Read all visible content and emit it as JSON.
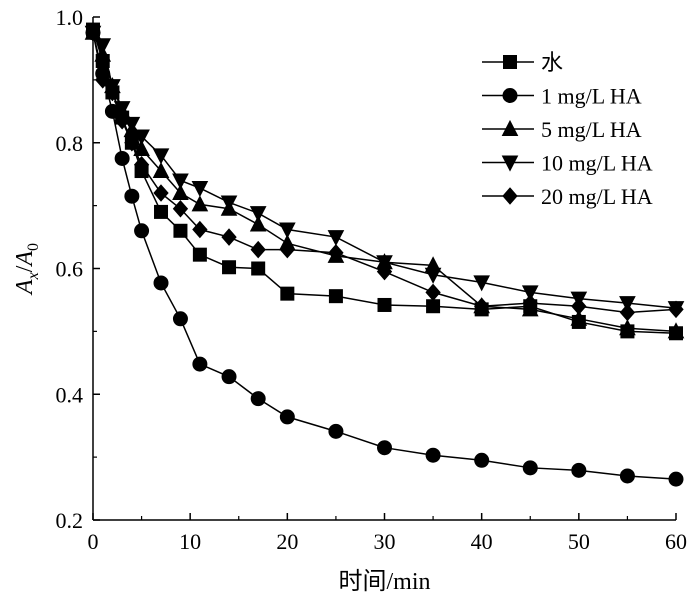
{
  "chart_data": {
    "type": "line",
    "xlabel": "时间/min",
    "ylabel": {
      "base": "A",
      "sub1": "x",
      "slash": "/",
      "base2": "A",
      "sub2": "0"
    },
    "xlim": [
      0,
      60
    ],
    "ylim": [
      0.2,
      1.0
    ],
    "x_ticks": [
      0,
      10,
      20,
      30,
      40,
      50,
      60
    ],
    "y_ticks": [
      0.2,
      0.4,
      0.6,
      0.8,
      1.0
    ],
    "x_tick_labels": [
      "0",
      "10",
      "20",
      "30",
      "40",
      "50",
      "60"
    ],
    "y_tick_labels": [
      "0.2",
      "0.4",
      "0.6",
      "0.8",
      "1.0"
    ],
    "grid": false,
    "legend_position": "top-right",
    "color": "#000000",
    "series": [
      {
        "name": "水",
        "marker": "square",
        "x": [
          0,
          1,
          2,
          3,
          4,
          5,
          7,
          9,
          11,
          14,
          17,
          20,
          25,
          30,
          35,
          40,
          45,
          50,
          55,
          60
        ],
        "y": [
          0.98,
          0.93,
          0.88,
          0.84,
          0.8,
          0.755,
          0.69,
          0.66,
          0.622,
          0.602,
          0.6,
          0.56,
          0.556,
          0.542,
          0.54,
          0.535,
          0.54,
          0.515,
          0.5,
          0.497
        ]
      },
      {
        "name": "1 mg/L HA",
        "marker": "circle",
        "x": [
          0,
          1,
          2,
          3,
          4,
          5,
          7,
          9,
          11,
          14,
          17,
          20,
          25,
          30,
          35,
          40,
          45,
          50,
          55,
          60
        ],
        "y": [
          0.975,
          0.91,
          0.85,
          0.775,
          0.715,
          0.66,
          0.577,
          0.52,
          0.448,
          0.428,
          0.393,
          0.364,
          0.341,
          0.315,
          0.303,
          0.295,
          0.283,
          0.279,
          0.27,
          0.265
        ]
      },
      {
        "name": "5 mg/L HA",
        "marker": "triangle-up",
        "x": [
          0,
          1,
          2,
          3,
          4,
          5,
          7,
          9,
          11,
          14,
          17,
          20,
          25,
          30,
          35,
          40,
          45,
          50,
          55,
          60
        ],
        "y": [
          0.975,
          0.94,
          0.89,
          0.85,
          0.82,
          0.79,
          0.755,
          0.72,
          0.702,
          0.695,
          0.67,
          0.64,
          0.62,
          0.61,
          0.605,
          0.54,
          0.535,
          0.52,
          0.505,
          0.5
        ]
      },
      {
        "name": "10 mg/L HA",
        "marker": "triangle-down",
        "x": [
          0,
          1,
          2,
          3,
          4,
          5,
          7,
          9,
          11,
          14,
          17,
          20,
          25,
          30,
          35,
          40,
          45,
          50,
          55,
          60
        ],
        "y": [
          0.975,
          0.955,
          0.89,
          0.855,
          0.83,
          0.81,
          0.78,
          0.74,
          0.728,
          0.705,
          0.688,
          0.662,
          0.65,
          0.61,
          0.59,
          0.578,
          0.562,
          0.552,
          0.545,
          0.537
        ]
      },
      {
        "name": "20 mg/L HA",
        "marker": "diamond",
        "x": [
          0,
          1,
          2,
          3,
          4,
          5,
          7,
          9,
          11,
          14,
          17,
          20,
          25,
          30,
          35,
          40,
          45,
          50,
          55,
          60
        ],
        "y": [
          0.975,
          0.9,
          0.88,
          0.835,
          0.8,
          0.765,
          0.72,
          0.695,
          0.662,
          0.65,
          0.63,
          0.63,
          0.625,
          0.595,
          0.562,
          0.54,
          0.545,
          0.54,
          0.53,
          0.535
        ]
      }
    ]
  }
}
